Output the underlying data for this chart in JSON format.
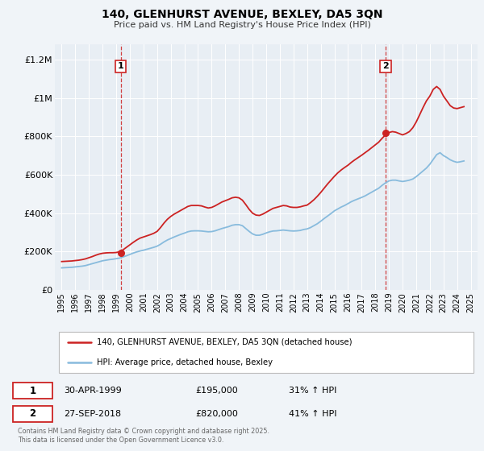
{
  "title": "140, GLENHURST AVENUE, BEXLEY, DA5 3QN",
  "subtitle": "Price paid vs. HM Land Registry's House Price Index (HPI)",
  "background_color": "#f0f4f8",
  "plot_bg_color": "#e8eef4",
  "red_color": "#cc2222",
  "blue_color": "#88bbdd",
  "xlim": [
    1994.5,
    2025.5
  ],
  "ylim": [
    0,
    1280000
  ],
  "yticks": [
    0,
    200000,
    400000,
    600000,
    800000,
    1000000,
    1200000
  ],
  "ytick_labels": [
    "£0",
    "£200K",
    "£400K",
    "£600K",
    "£800K",
    "£1M",
    "£1.2M"
  ],
  "xticks": [
    1995,
    1996,
    1997,
    1998,
    1999,
    2000,
    2001,
    2002,
    2003,
    2004,
    2005,
    2006,
    2007,
    2008,
    2009,
    2010,
    2011,
    2012,
    2013,
    2014,
    2015,
    2016,
    2017,
    2018,
    2019,
    2020,
    2021,
    2022,
    2023,
    2024,
    2025
  ],
  "vline1_x": 1999.33,
  "vline2_x": 2018.75,
  "marker1_x": 1999.33,
  "marker1_y": 195000,
  "marker2_x": 2018.75,
  "marker2_y": 820000,
  "label1_text": "1",
  "label2_text": "2",
  "legend_line1": "140, GLENHURST AVENUE, BEXLEY, DA5 3QN (detached house)",
  "legend_line2": "HPI: Average price, detached house, Bexley",
  "table_row1": [
    "1",
    "30-APR-1999",
    "£195,000",
    "31% ↑ HPI"
  ],
  "table_row2": [
    "2",
    "27-SEP-2018",
    "£820,000",
    "41% ↑ HPI"
  ],
  "footer": "Contains HM Land Registry data © Crown copyright and database right 2025.\nThis data is licensed under the Open Government Licence v3.0.",
  "hpi_data": {
    "years": [
      1995.0,
      1995.25,
      1995.5,
      1995.75,
      1996.0,
      1996.25,
      1996.5,
      1996.75,
      1997.0,
      1997.25,
      1997.5,
      1997.75,
      1998.0,
      1998.25,
      1998.5,
      1998.75,
      1999.0,
      1999.25,
      1999.5,
      1999.75,
      2000.0,
      2000.25,
      2000.5,
      2000.75,
      2001.0,
      2001.25,
      2001.5,
      2001.75,
      2002.0,
      2002.25,
      2002.5,
      2002.75,
      2003.0,
      2003.25,
      2003.5,
      2003.75,
      2004.0,
      2004.25,
      2004.5,
      2004.75,
      2005.0,
      2005.25,
      2005.5,
      2005.75,
      2006.0,
      2006.25,
      2006.5,
      2006.75,
      2007.0,
      2007.25,
      2007.5,
      2007.75,
      2008.0,
      2008.25,
      2008.5,
      2008.75,
      2009.0,
      2009.25,
      2009.5,
      2009.75,
      2010.0,
      2010.25,
      2010.5,
      2010.75,
      2011.0,
      2011.25,
      2011.5,
      2011.75,
      2012.0,
      2012.25,
      2012.5,
      2012.75,
      2013.0,
      2013.25,
      2013.5,
      2013.75,
      2014.0,
      2014.25,
      2014.5,
      2014.75,
      2015.0,
      2015.25,
      2015.5,
      2015.75,
      2016.0,
      2016.25,
      2016.5,
      2016.75,
      2017.0,
      2017.25,
      2017.5,
      2017.75,
      2018.0,
      2018.25,
      2018.5,
      2018.75,
      2019.0,
      2019.25,
      2019.5,
      2019.75,
      2020.0,
      2020.25,
      2020.5,
      2020.75,
      2021.0,
      2021.25,
      2021.5,
      2021.75,
      2022.0,
      2022.25,
      2022.5,
      2022.75,
      2023.0,
      2023.25,
      2023.5,
      2023.75,
      2024.0,
      2024.25,
      2024.5
    ],
    "values": [
      115000,
      116000,
      117000,
      118000,
      120000,
      122000,
      124000,
      127000,
      132000,
      137000,
      142000,
      147000,
      152000,
      155000,
      158000,
      160000,
      163000,
      166000,
      172000,
      178000,
      185000,
      192000,
      198000,
      203000,
      207000,
      212000,
      217000,
      222000,
      228000,
      238000,
      250000,
      260000,
      268000,
      276000,
      283000,
      290000,
      296000,
      303000,
      307000,
      308000,
      308000,
      307000,
      305000,
      303000,
      304000,
      308000,
      314000,
      320000,
      325000,
      330000,
      337000,
      340000,
      340000,
      335000,
      320000,
      305000,
      292000,
      285000,
      285000,
      290000,
      297000,
      303000,
      307000,
      308000,
      310000,
      312000,
      310000,
      308000,
      307000,
      308000,
      310000,
      315000,
      318000,
      325000,
      335000,
      345000,
      358000,
      372000,
      385000,
      398000,
      412000,
      422000,
      432000,
      440000,
      450000,
      460000,
      468000,
      475000,
      482000,
      490000,
      500000,
      510000,
      520000,
      530000,
      545000,
      558000,
      568000,
      572000,
      572000,
      568000,
      565000,
      568000,
      572000,
      578000,
      590000,
      605000,
      620000,
      635000,
      655000,
      680000,
      705000,
      715000,
      700000,
      690000,
      678000,
      670000,
      665000,
      668000,
      672000
    ]
  },
  "house_data": {
    "years": [
      1995.0,
      1995.25,
      1995.5,
      1995.75,
      1996.0,
      1996.25,
      1996.5,
      1996.75,
      1997.0,
      1997.25,
      1997.5,
      1997.75,
      1998.0,
      1998.25,
      1998.5,
      1998.75,
      1999.0,
      1999.25,
      1999.5,
      1999.75,
      2000.0,
      2000.25,
      2000.5,
      2000.75,
      2001.0,
      2001.25,
      2001.5,
      2001.75,
      2002.0,
      2002.25,
      2002.5,
      2002.75,
      2003.0,
      2003.25,
      2003.5,
      2003.75,
      2004.0,
      2004.25,
      2004.5,
      2004.75,
      2005.0,
      2005.25,
      2005.5,
      2005.75,
      2006.0,
      2006.25,
      2006.5,
      2006.75,
      2007.0,
      2007.25,
      2007.5,
      2007.75,
      2008.0,
      2008.25,
      2008.5,
      2008.75,
      2009.0,
      2009.25,
      2009.5,
      2009.75,
      2010.0,
      2010.25,
      2010.5,
      2010.75,
      2011.0,
      2011.25,
      2011.5,
      2011.75,
      2012.0,
      2012.25,
      2012.5,
      2012.75,
      2013.0,
      2013.25,
      2013.5,
      2013.75,
      2014.0,
      2014.25,
      2014.5,
      2014.75,
      2015.0,
      2015.25,
      2015.5,
      2015.75,
      2016.0,
      2016.25,
      2016.5,
      2016.75,
      2017.0,
      2017.25,
      2017.5,
      2017.75,
      2018.0,
      2018.25,
      2018.5,
      2018.75,
      2019.0,
      2019.25,
      2019.5,
      2019.75,
      2020.0,
      2020.25,
      2020.5,
      2020.75,
      2021.0,
      2021.25,
      2021.5,
      2021.75,
      2022.0,
      2022.25,
      2022.5,
      2022.75,
      2023.0,
      2023.25,
      2023.5,
      2023.75,
      2024.0,
      2024.25,
      2024.5
    ],
    "values": [
      148000,
      149000,
      150000,
      151000,
      153000,
      155000,
      158000,
      162000,
      168000,
      174000,
      181000,
      187000,
      191000,
      193000,
      194000,
      194000,
      195000,
      199000,
      209000,
      222000,
      235000,
      248000,
      260000,
      270000,
      276000,
      282000,
      288000,
      295000,
      305000,
      325000,
      348000,
      368000,
      383000,
      395000,
      405000,
      415000,
      425000,
      435000,
      440000,
      440000,
      440000,
      438000,
      432000,
      427000,
      430000,
      438000,
      448000,
      458000,
      465000,
      472000,
      480000,
      483000,
      480000,
      468000,
      445000,
      420000,
      400000,
      390000,
      388000,
      395000,
      405000,
      415000,
      425000,
      430000,
      435000,
      440000,
      438000,
      432000,
      430000,
      430000,
      433000,
      438000,
      442000,
      455000,
      470000,
      488000,
      508000,
      530000,
      552000,
      572000,
      592000,
      610000,
      625000,
      638000,
      650000,
      665000,
      678000,
      690000,
      702000,
      715000,
      728000,
      742000,
      756000,
      770000,
      790000,
      808000,
      820000,
      825000,
      822000,
      815000,
      808000,
      815000,
      825000,
      845000,
      875000,
      912000,
      950000,
      985000,
      1010000,
      1045000,
      1060000,
      1045000,
      1010000,
      985000,
      960000,
      948000,
      945000,
      950000,
      955000
    ]
  }
}
